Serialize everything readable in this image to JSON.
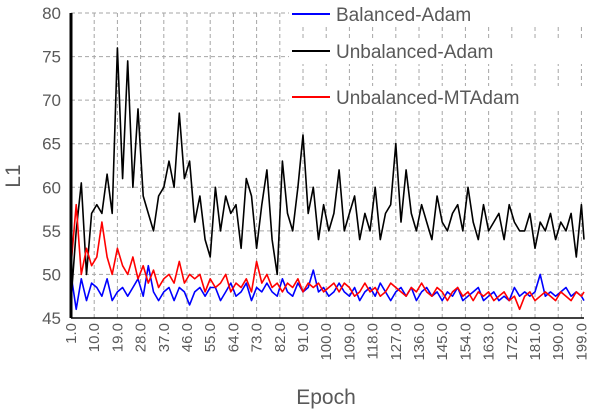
{
  "chart_data": {
    "type": "line",
    "xlabel": "Epoch",
    "ylabel": "L1",
    "ylim": [
      45,
      80
    ],
    "yticks": [
      45,
      50,
      55,
      60,
      65,
      70,
      75,
      80
    ],
    "xlim": [
      1,
      200
    ],
    "xtick_labels": [
      "1.0",
      "10.0",
      "19.0",
      "28.0",
      "37.0",
      "46.0",
      "55.0",
      "64.0",
      "73.0",
      "82.0",
      "91.0",
      "100.0",
      "109.0",
      "118.0",
      "127.0",
      "136.0",
      "145.0",
      "154.0",
      "163.0",
      "172.0",
      "181.0",
      "190.0",
      "199.0"
    ],
    "grid": true,
    "legend_position": "top-right",
    "series": [
      {
        "name": "Balanced-Adam",
        "color": "#0000ff",
        "x": [
          1,
          3,
          5,
          7,
          9,
          11,
          13,
          15,
          17,
          19,
          21,
          23,
          25,
          27,
          29,
          31,
          33,
          35,
          37,
          39,
          41,
          43,
          45,
          47,
          49,
          51,
          53,
          55,
          57,
          59,
          61,
          63,
          65,
          67,
          69,
          71,
          73,
          75,
          77,
          79,
          81,
          83,
          85,
          87,
          89,
          91,
          93,
          95,
          97,
          99,
          101,
          103,
          105,
          107,
          109,
          111,
          113,
          115,
          117,
          119,
          121,
          123,
          125,
          127,
          129,
          131,
          133,
          135,
          137,
          139,
          141,
          143,
          145,
          147,
          149,
          151,
          153,
          155,
          157,
          159,
          161,
          163,
          165,
          167,
          169,
          171,
          173,
          175,
          177,
          179,
          181,
          183,
          185,
          187,
          189,
          191,
          193,
          195,
          197,
          199,
          200
        ],
        "values": [
          50,
          46,
          49.5,
          47,
          49,
          48.5,
          47.5,
          49.5,
          47,
          48,
          48.5,
          47.5,
          48.5,
          49.5,
          47.5,
          51,
          48,
          47,
          48,
          48.5,
          47,
          48.5,
          48,
          46.5,
          48,
          48.5,
          47.5,
          48.5,
          48.5,
          47,
          48,
          49,
          47.5,
          48,
          49,
          47,
          48.5,
          48,
          49,
          48,
          47.5,
          49.5,
          48,
          47.5,
          49,
          48,
          48.5,
          50.5,
          48,
          48.5,
          47.5,
          48,
          49,
          48,
          47.5,
          48.5,
          47,
          48,
          48.5,
          47.5,
          49,
          48,
          47,
          48,
          48.5,
          47.5,
          48.5,
          47,
          48,
          48.5,
          47.5,
          48,
          47,
          48,
          47.5,
          48.5,
          47,
          47.5,
          48,
          48.5,
          47,
          47.5,
          48,
          47,
          47.5,
          47,
          48.5,
          47.5,
          48,
          47.5,
          48,
          50,
          47.5,
          48,
          47.5,
          48,
          48.5,
          47.5,
          48,
          47.5,
          47
        ]
      },
      {
        "name": "Unbalanced-Adam",
        "color": "#000000",
        "x": [
          1,
          3,
          5,
          7,
          9,
          11,
          13,
          15,
          17,
          19,
          21,
          23,
          25,
          27,
          29,
          31,
          33,
          35,
          37,
          39,
          41,
          43,
          45,
          47,
          49,
          51,
          53,
          55,
          57,
          59,
          61,
          63,
          65,
          67,
          69,
          71,
          73,
          75,
          77,
          79,
          81,
          83,
          85,
          87,
          89,
          91,
          93,
          95,
          97,
          99,
          101,
          103,
          105,
          107,
          109,
          111,
          113,
          115,
          117,
          119,
          121,
          123,
          125,
          127,
          129,
          131,
          133,
          135,
          137,
          139,
          141,
          143,
          145,
          147,
          149,
          151,
          153,
          155,
          157,
          159,
          161,
          163,
          165,
          167,
          169,
          171,
          173,
          175,
          177,
          179,
          181,
          183,
          185,
          187,
          189,
          191,
          193,
          195,
          197,
          199,
          200
        ],
        "values": [
          47,
          55,
          60.5,
          50,
          57,
          58,
          57,
          61.5,
          57,
          76,
          61,
          74.5,
          60,
          69,
          59,
          57,
          55,
          59,
          60,
          63,
          60,
          68.5,
          61,
          63,
          56,
          59,
          54,
          52,
          60,
          55,
          59,
          57,
          58,
          53,
          61,
          59,
          53,
          58,
          62,
          54,
          50,
          63,
          57,
          55,
          60,
          66,
          57,
          60,
          54,
          58,
          55,
          57,
          62,
          55,
          57,
          59,
          54,
          57,
          55,
          60,
          54,
          57,
          58,
          65,
          56,
          62,
          57,
          55,
          58,
          56,
          54,
          59,
          56,
          55,
          57,
          58,
          55,
          60,
          56,
          54,
          58,
          55,
          56,
          57,
          54,
          58,
          56,
          55,
          55,
          57,
          53,
          56,
          55,
          57,
          54,
          56,
          55,
          57,
          52,
          58,
          54
        ]
      },
      {
        "name": "Unbalanced-MTAdam",
        "color": "#ff0000",
        "x": [
          1,
          3,
          5,
          7,
          9,
          11,
          13,
          15,
          17,
          19,
          21,
          23,
          25,
          27,
          29,
          31,
          33,
          35,
          37,
          39,
          41,
          43,
          45,
          47,
          49,
          51,
          53,
          55,
          57,
          59,
          61,
          63,
          65,
          67,
          69,
          71,
          73,
          75,
          77,
          79,
          81,
          83,
          85,
          87,
          89,
          91,
          93,
          95,
          97,
          99,
          101,
          103,
          105,
          107,
          109,
          111,
          113,
          115,
          117,
          119,
          121,
          123,
          125,
          127,
          129,
          131,
          133,
          135,
          137,
          139,
          141,
          143,
          145,
          147,
          149,
          151,
          153,
          155,
          157,
          159,
          161,
          163,
          165,
          167,
          169,
          171,
          173,
          175,
          177,
          179,
          181,
          183,
          185,
          187,
          189,
          191,
          193,
          195,
          197,
          199,
          200
        ],
        "values": [
          51,
          58,
          50,
          53,
          51,
          52,
          56,
          52,
          50,
          53,
          51,
          50,
          52,
          49.5,
          51,
          49,
          50.5,
          48.5,
          49.5,
          50,
          49,
          51.5,
          49,
          50,
          49.5,
          50,
          48,
          49.5,
          48.5,
          49,
          50,
          48,
          49,
          48.5,
          49.5,
          48,
          51.5,
          49,
          50,
          48.5,
          49,
          48,
          49,
          48.5,
          49.5,
          48,
          49,
          48.5,
          49,
          48,
          48.5,
          49,
          48,
          49,
          48.5,
          47.5,
          48,
          49,
          48,
          48.5,
          47.5,
          48,
          49,
          48.5,
          48,
          47.5,
          48.5,
          48,
          49,
          48,
          47.5,
          48.5,
          48,
          47,
          48,
          48.5,
          47.5,
          48,
          47,
          48,
          47.5,
          48,
          47,
          47.5,
          48,
          47,
          47.5,
          46,
          47.5,
          48,
          47,
          47.5,
          48,
          47.5,
          47,
          48,
          47.5,
          47,
          48,
          47.5,
          48
        ]
      }
    ]
  }
}
